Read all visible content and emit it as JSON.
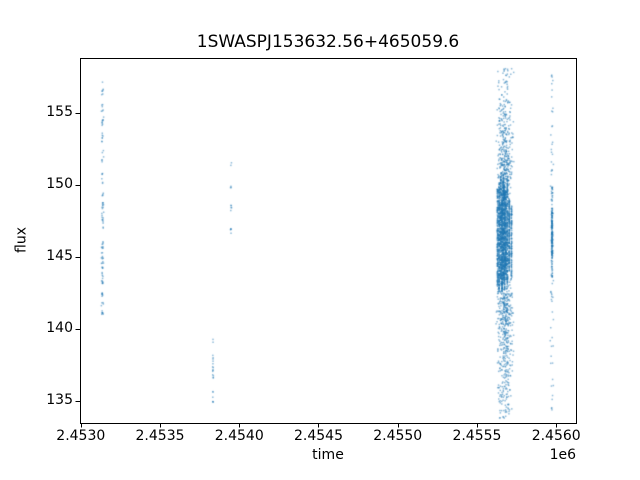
{
  "figure": {
    "background": "#ffffff",
    "text_color": "#000000",
    "spine_color": "#000000"
  },
  "chart_data": {
    "type": "scatter",
    "title": "1SWASPJ153632.56+465059.6",
    "xlabel": "time",
    "ylabel": "flux",
    "offset_text": "1e6",
    "legend": null,
    "grid": false,
    "xlim": [
      2452995,
      2456125
    ],
    "ylim": [
      133.47,
      158.82
    ],
    "xticks": [
      2453000,
      2453500,
      2454000,
      2454500,
      2455000,
      2455500,
      2456000
    ],
    "xticklabels": [
      "2.4530",
      "2.4535",
      "2.4540",
      "2.4545",
      "2.4550",
      "2.4555",
      "2.4560"
    ],
    "yticks": [
      135,
      140,
      145,
      150,
      155
    ],
    "yticklabels": [
      "135",
      "140",
      "145",
      "150",
      "155"
    ],
    "marker_color": "#1f77b4",
    "marker_alpha": 0.5,
    "marker_size_px": 1.5,
    "seed": 20110615,
    "clusters": [
      {
        "name": "cluster-1",
        "t": 2453137,
        "t_spread": 8,
        "segments": [
          [
            156.2,
            157.2,
            7
          ],
          [
            155.1,
            155.9,
            6
          ],
          [
            154.1,
            154.9,
            9
          ],
          [
            152.9,
            153.7,
            7
          ],
          [
            152.2,
            152.5,
            2
          ],
          [
            151.6,
            152.0,
            4
          ],
          [
            150.1,
            150.8,
            6
          ],
          [
            148.6,
            149.5,
            9
          ],
          [
            147.7,
            148.6,
            9
          ],
          [
            146.9,
            147.7,
            7
          ],
          [
            145.3,
            146.3,
            9
          ],
          [
            144.5,
            145.3,
            9
          ],
          [
            143.7,
            144.6,
            9
          ],
          [
            142.8,
            143.7,
            9
          ],
          [
            142.1,
            142.8,
            7
          ],
          [
            141.1,
            142.0,
            9
          ],
          [
            140.85,
            141.05,
            2
          ]
        ]
      },
      {
        "name": "cluster-2-upper",
        "t": 2453948,
        "t_spread": 4,
        "segments": [
          [
            151.3,
            151.6,
            2
          ],
          [
            149.7,
            150.0,
            3
          ],
          [
            148.2,
            148.8,
            5
          ],
          [
            146.5,
            147.1,
            5
          ]
        ]
      },
      {
        "name": "cluster-2-lower",
        "t": 2453834,
        "t_spread": 4,
        "segments": [
          [
            139.0,
            139.3,
            2
          ],
          [
            136.4,
            138.2,
            14
          ],
          [
            134.8,
            135.8,
            6
          ]
        ]
      },
      {
        "name": "cluster-3-broad",
        "t": 2455677,
        "t_spread": 58,
        "segments": [
          [
            156.0,
            158.1,
            35
          ],
          [
            154.0,
            156.0,
            70
          ],
          [
            152.0,
            154.0,
            110
          ],
          [
            150.5,
            152.0,
            130
          ],
          [
            141.0,
            142.5,
            140
          ],
          [
            139.0,
            141.0,
            130
          ],
          [
            136.5,
            139.0,
            110
          ],
          [
            134.2,
            136.5,
            70
          ],
          [
            133.8,
            134.2,
            8
          ]
        ]
      },
      {
        "name": "cluster-3-fill",
        "t": 2455672,
        "t_spread": 45,
        "segments": [
          [
            142.5,
            150.5,
            350
          ]
        ]
      },
      {
        "name": "cluster-3-streak-1",
        "t": 2455630,
        "t_spread": 2.5,
        "segments": [
          [
            143.0,
            149.8,
            190
          ]
        ]
      },
      {
        "name": "cluster-3-streak-2",
        "t": 2455640,
        "t_spread": 2.5,
        "segments": [
          [
            142.6,
            150.2,
            220
          ]
        ]
      },
      {
        "name": "cluster-3-streak-3",
        "t": 2455650,
        "t_spread": 2.5,
        "segments": [
          [
            143.5,
            150.6,
            200
          ]
        ]
      },
      {
        "name": "cluster-3-streak-4",
        "t": 2455658,
        "t_spread": 2.5,
        "segments": [
          [
            142.6,
            149.4,
            230
          ]
        ]
      },
      {
        "name": "cluster-3-streak-5",
        "t": 2455666,
        "t_spread": 2.5,
        "segments": [
          [
            143.2,
            150.8,
            210
          ]
        ]
      },
      {
        "name": "cluster-3-streak-6",
        "t": 2455674,
        "t_spread": 2.5,
        "segments": [
          [
            142.7,
            150.0,
            240
          ]
        ]
      },
      {
        "name": "cluster-3-streak-7",
        "t": 2455682,
        "t_spread": 2.5,
        "segments": [
          [
            143.8,
            149.6,
            180
          ]
        ]
      },
      {
        "name": "cluster-3-streak-8",
        "t": 2455692,
        "t_spread": 2.5,
        "segments": [
          [
            142.8,
            150.4,
            170
          ]
        ]
      },
      {
        "name": "cluster-3-streak-9",
        "t": 2455704,
        "t_spread": 2.5,
        "segments": [
          [
            144.0,
            149.0,
            150
          ]
        ]
      },
      {
        "name": "cluster-3-streak-10",
        "t": 2455718,
        "t_spread": 2.5,
        "segments": [
          [
            143.4,
            148.6,
            120
          ]
        ]
      },
      {
        "name": "cluster-4-core",
        "t": 2455974,
        "t_spread": 5,
        "segments": [
          [
            145.0,
            148.4,
            170
          ],
          [
            143.6,
            145.0,
            25
          ],
          [
            148.4,
            149.9,
            20
          ]
        ]
      },
      {
        "name": "cluster-4-halo",
        "t": 2455973,
        "t_spread": 14,
        "segments": [
          [
            149.9,
            152.5,
            10
          ],
          [
            152.5,
            155.5,
            8
          ],
          [
            156.0,
            158.0,
            7
          ],
          [
            140.5,
            143.6,
            12
          ],
          [
            137.5,
            140.5,
            8
          ],
          [
            134.3,
            136.5,
            8
          ]
        ]
      }
    ]
  }
}
